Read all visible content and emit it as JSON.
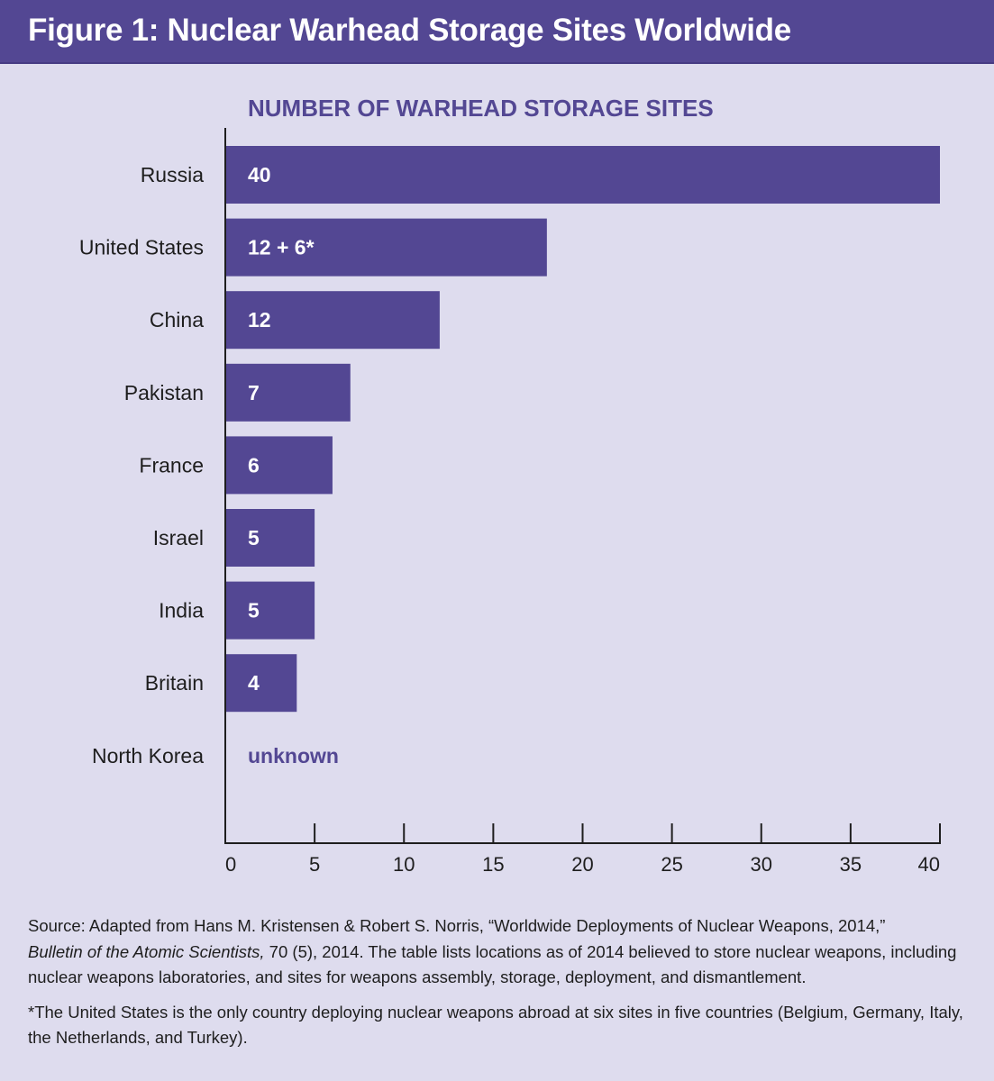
{
  "header": {
    "title": "Figure 1: Nuclear Warhead Storage Sites Worldwide"
  },
  "colors": {
    "header_bg": "#534793",
    "bar": "#534793",
    "background": "#dedcee",
    "title_text": "#534793"
  },
  "chart_data": {
    "type": "bar",
    "orientation": "horizontal",
    "title": "NUMBER OF WARHEAD STORAGE SITES",
    "categories": [
      "Russia",
      "United States",
      "China",
      "Pakistan",
      "France",
      "Israel",
      "India",
      "Britain",
      "North Korea"
    ],
    "values": [
      40,
      18,
      12,
      7,
      6,
      5,
      5,
      4,
      null
    ],
    "data_labels": [
      "40",
      "12 + 6*",
      "12",
      "7",
      "6",
      "5",
      "5",
      "4",
      "unknown"
    ],
    "xlim": [
      0,
      40
    ],
    "xticks": [
      0,
      5,
      10,
      15,
      20,
      25,
      30,
      35,
      40
    ],
    "grid": false,
    "legend": "none"
  },
  "footer": {
    "source_lead": "Source: Adapted from Hans M. Kristensen & Robert S. Norris, “Worldwide Deployments of Nuclear Weapons, 2014,”",
    "source_journal": "Bulletin of the Atomic Scientists,",
    "source_rest": " 70 (5), 2014. The table lists locations as of 2014 believed to store nuclear weapons, including nuclear weapons laboratories, and sites for weapons assembly, storage, deployment, and dismantlement.",
    "note": "*The United States is the only country deploying nuclear weapons abroad at six sites in five countries (Belgium, Germany, Italy, the Netherlands, and Turkey)."
  }
}
